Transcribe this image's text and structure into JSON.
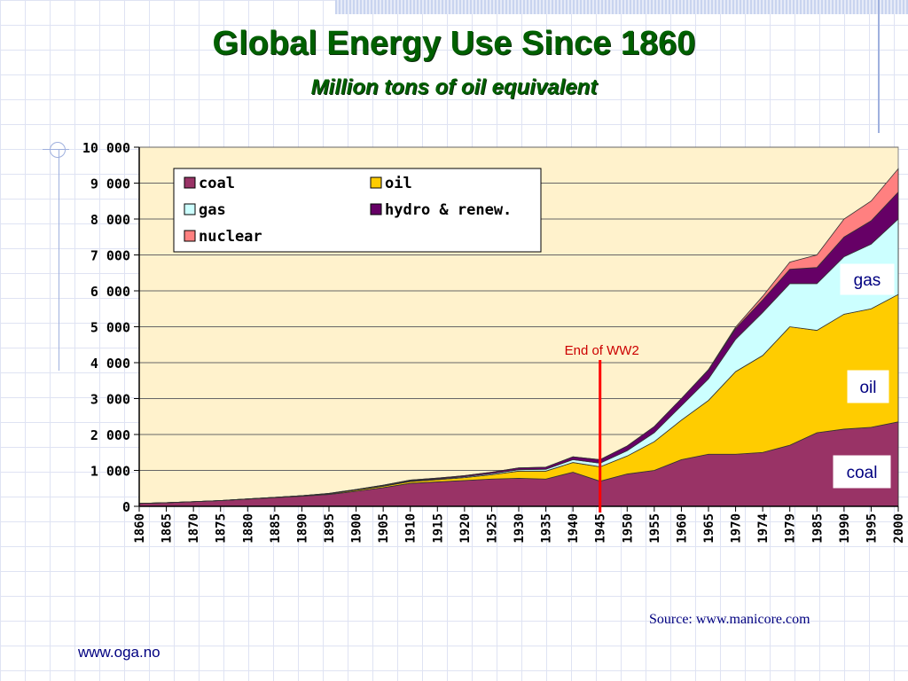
{
  "slide": {
    "title": "Global Energy Use Since 1860",
    "subtitle": "Million tons of oil equivalent",
    "source": "Source: www.manicore.com",
    "footer_url": "www.oga.no"
  },
  "chart_data": {
    "type": "area",
    "stacked": true,
    "x": [
      "1860",
      "1865",
      "1870",
      "1875",
      "1880",
      "1885",
      "1890",
      "1895",
      "1900",
      "1905",
      "1910",
      "1915",
      "1920",
      "1925",
      "1930",
      "1935",
      "1940",
      "1945",
      "1950",
      "1955",
      "1960",
      "1965",
      "1970",
      "1974",
      "1979",
      "1985",
      "1990",
      "1995",
      "2000"
    ],
    "ylim": [
      0,
      10000
    ],
    "yticks": [
      "0",
      "1 000",
      "2 000",
      "3 000",
      "4 000",
      "5 000",
      "6 000",
      "7 000",
      "8 000",
      "9 000",
      "10 000"
    ],
    "ytick_values": [
      0,
      1000,
      2000,
      3000,
      4000,
      5000,
      6000,
      7000,
      8000,
      9000,
      10000
    ],
    "grid": true,
    "legend_position": "top-left",
    "series": [
      {
        "name": "coal",
        "color": "#993366",
        "values": [
          80,
          100,
          130,
          160,
          200,
          240,
          280,
          330,
          420,
          520,
          640,
          680,
          720,
          760,
          780,
          760,
          950,
          700,
          900,
          1000,
          1300,
          1450,
          1450,
          1500,
          1700,
          2050,
          2150,
          2200,
          2350
        ]
      },
      {
        "name": "oil",
        "color": "#ffcc00",
        "values": [
          0,
          0,
          0,
          0,
          5,
          10,
          15,
          20,
          30,
          40,
          50,
          60,
          80,
          120,
          200,
          220,
          270,
          400,
          500,
          800,
          1100,
          1500,
          2300,
          2700,
          3300,
          2850,
          3200,
          3300,
          3550
        ]
      },
      {
        "name": "gas",
        "color": "#ccffff",
        "values": [
          0,
          0,
          0,
          0,
          0,
          0,
          0,
          5,
          10,
          15,
          20,
          20,
          25,
          30,
          40,
          50,
          80,
          100,
          150,
          250,
          400,
          600,
          900,
          1200,
          1200,
          1300,
          1600,
          1800,
          2100
        ]
      },
      {
        "name": "hydro & renew.",
        "color": "#660066",
        "values": [
          0,
          0,
          0,
          0,
          0,
          0,
          0,
          5,
          10,
          15,
          20,
          25,
          30,
          40,
          50,
          60,
          80,
          100,
          130,
          170,
          200,
          250,
          300,
          350,
          400,
          450,
          550,
          650,
          750
        ]
      },
      {
        "name": "nuclear",
        "color": "#ff8080",
        "values": [
          0,
          0,
          0,
          0,
          0,
          0,
          0,
          0,
          0,
          0,
          0,
          0,
          0,
          0,
          0,
          0,
          0,
          0,
          0,
          0,
          0,
          10,
          40,
          100,
          200,
          350,
          500,
          550,
          650
        ]
      }
    ],
    "annotations": {
      "event_label": "End of WW2",
      "event_x": "1945",
      "gas_label": "gas",
      "oil_label": "oil",
      "coal_label": "coal"
    }
  }
}
